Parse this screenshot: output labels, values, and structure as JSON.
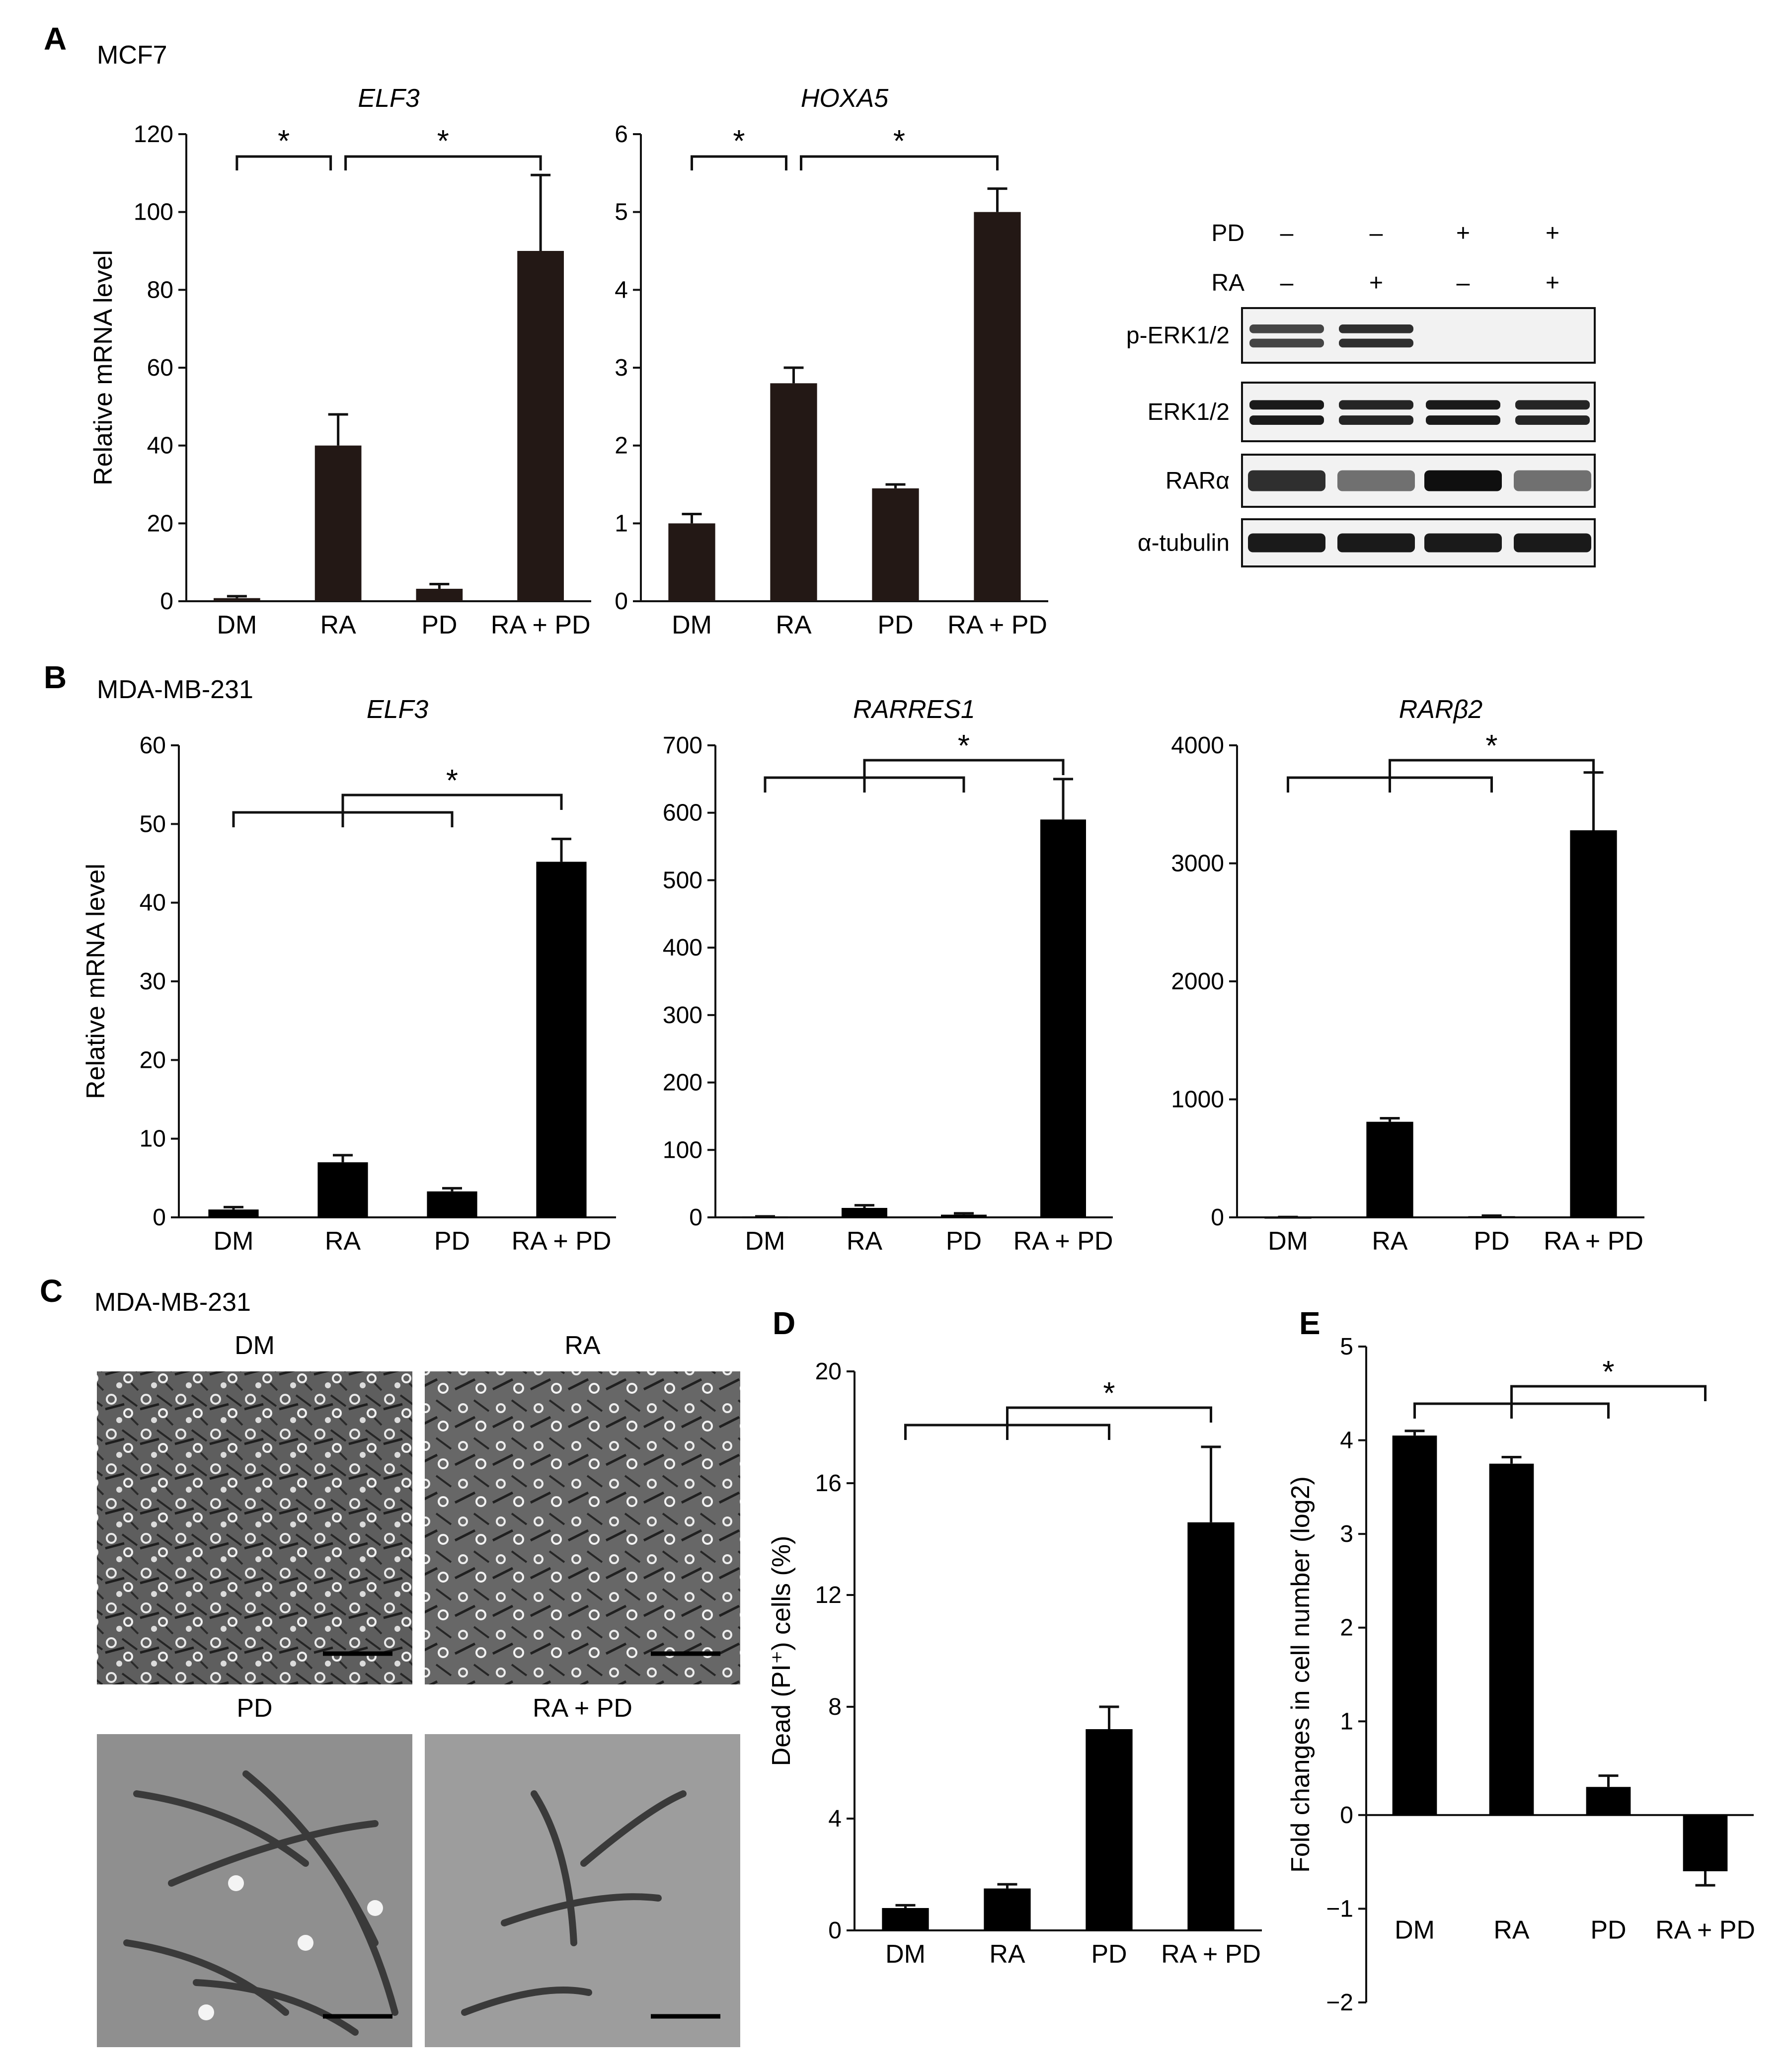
{
  "panels": {
    "A": {
      "letter": "A",
      "cell_line": "MCF7"
    },
    "B": {
      "letter": "B",
      "cell_line": "MDA-MB-231"
    },
    "C": {
      "letter": "C",
      "cell_line": "MDA-MB-231",
      "images": [
        "DM",
        "RA",
        "PD",
        "RA + PD"
      ]
    },
    "D": {
      "letter": "D"
    },
    "E": {
      "letter": "E"
    }
  },
  "significance_marker": "*",
  "western_blot": {
    "treatment_rows": [
      {
        "label": "PD",
        "signs": [
          "–",
          "–",
          "+",
          "+"
        ]
      },
      {
        "label": "RA",
        "signs": [
          "–",
          "+",
          "–",
          "+"
        ]
      }
    ],
    "bands": [
      {
        "label": "p-ERK1/2",
        "intensity": [
          0.75,
          0.85,
          0.0,
          0.0
        ]
      },
      {
        "label": "ERK1/2",
        "intensity": [
          0.95,
          0.9,
          0.95,
          0.9
        ]
      },
      {
        "label": "RARα",
        "intensity": [
          0.85,
          0.55,
          1.0,
          0.55
        ]
      },
      {
        "label": "α-tubulin",
        "intensity": [
          0.95,
          0.95,
          0.95,
          0.95
        ]
      }
    ]
  },
  "chart_data": [
    {
      "id": "A-ELF3",
      "type": "bar",
      "title": "ELF3",
      "ylabel": "Relative mRNA level",
      "categories": [
        "DM",
        "RA",
        "PD",
        "RA + PD"
      ],
      "values": [
        0.8,
        40,
        3.2,
        90
      ],
      "errors": [
        0.5,
        8,
        1.2,
        19.5
      ],
      "ylim": [
        0,
        120
      ],
      "yticks": [
        "0",
        "20",
        "40",
        "60",
        "80",
        "100",
        "120"
      ],
      "sig": "pairs",
      "bar_color": "#231815"
    },
    {
      "id": "A-HOXA5",
      "type": "bar",
      "title": "HOXA5",
      "ylabel": "",
      "categories": [
        "DM",
        "RA",
        "PD",
        "RA + PD"
      ],
      "values": [
        1.0,
        2.8,
        1.45,
        5.0
      ],
      "errors": [
        0.12,
        0.2,
        0.05,
        0.3
      ],
      "ylim": [
        0,
        6
      ],
      "yticks": [
        "0",
        "1",
        "2",
        "3",
        "4",
        "5",
        "6"
      ],
      "sig": "pairs",
      "bar_color": "#231815"
    },
    {
      "id": "B-ELF3",
      "type": "bar",
      "title": "ELF3",
      "ylabel": "Relative mRNA level",
      "categories": [
        "DM",
        "RA",
        "PD",
        "RA + PD"
      ],
      "values": [
        1.0,
        7.0,
        3.3,
        45.2
      ],
      "errors": [
        0.3,
        0.9,
        0.4,
        2.9
      ],
      "ylim": [
        0,
        60
      ],
      "yticks": [
        "0",
        "10",
        "20",
        "30",
        "40",
        "50",
        "60"
      ],
      "sig": "group",
      "bar_color": "#000000"
    },
    {
      "id": "B-RARRES1",
      "type": "bar",
      "title": "RARRES1",
      "ylabel": "",
      "categories": [
        "DM",
        "RA",
        "PD",
        "RA + PD"
      ],
      "values": [
        1,
        14,
        4,
        590
      ],
      "errors": [
        0.5,
        4,
        2,
        60
      ],
      "ylim": [
        0,
        700
      ],
      "yticks": [
        "0",
        "100",
        "200",
        "300",
        "400",
        "500",
        "600",
        "700"
      ],
      "sig": "group",
      "bar_color": "#000000"
    },
    {
      "id": "B-RARb2",
      "type": "bar",
      "title": "RARβ2",
      "ylabel": "",
      "categories": [
        "DM",
        "RA",
        "PD",
        "RA + PD"
      ],
      "values": [
        2,
        810,
        10,
        3280
      ],
      "errors": [
        1,
        30,
        5,
        490
      ],
      "ylim": [
        0,
        4000
      ],
      "yticks": [
        "0",
        "1000",
        "2000",
        "3000",
        "4000"
      ],
      "sig": "group",
      "bar_color": "#000000"
    },
    {
      "id": "D",
      "type": "bar",
      "title": "",
      "ylabel": "Dead (PI⁺) cells (%)",
      "categories": [
        "DM",
        "RA",
        "PD",
        "RA + PD"
      ],
      "values": [
        0.8,
        1.5,
        7.2,
        14.6
      ],
      "errors": [
        0.1,
        0.15,
        0.8,
        2.7
      ],
      "ylim": [
        0,
        20
      ],
      "yticks": [
        "0",
        "4",
        "8",
        "12",
        "16",
        "20"
      ],
      "sig": "group",
      "bar_color": "#000000"
    },
    {
      "id": "E",
      "type": "bar",
      "title": "",
      "ylabel": "Fold changes in cell number (log2)",
      "categories": [
        "DM",
        "RA",
        "PD",
        "RA + PD"
      ],
      "values": [
        4.05,
        3.75,
        0.3,
        -0.6
      ],
      "errors": [
        0.05,
        0.07,
        0.12,
        0.15
      ],
      "ylim": [
        -2,
        5
      ],
      "yticks": [
        "−2",
        "−1",
        "0",
        "1",
        "2",
        "3",
        "4",
        "5"
      ],
      "sig": "group",
      "bar_color": "#000000"
    }
  ]
}
